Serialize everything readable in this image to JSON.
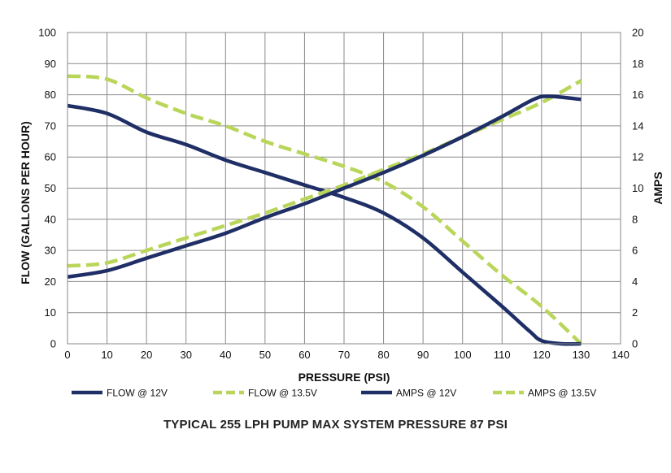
{
  "chart_data": {
    "type": "line",
    "caption": "TYPICAL 255 LPH PUMP MAX SYSTEM PRESSURE 87 PSI",
    "xlabel": "PRESSURE (PSI)",
    "ylabel": "FLOW (GALLONS PER HOUR)",
    "y2label": "AMPS",
    "xlim": [
      0,
      140
    ],
    "ylim": [
      0,
      100
    ],
    "y2lim": [
      0,
      20
    ],
    "xticks": [
      0,
      10,
      20,
      30,
      40,
      50,
      60,
      70,
      80,
      90,
      100,
      110,
      120,
      130,
      140
    ],
    "yticks": [
      0,
      10,
      20,
      30,
      40,
      50,
      60,
      70,
      80,
      90,
      100
    ],
    "y2ticks": [
      0,
      2,
      4,
      6,
      8,
      10,
      12,
      14,
      16,
      18,
      20
    ],
    "grid": true,
    "legend_position": "bottom",
    "series": [
      {
        "name": "FLOW @ 12V",
        "axis": "left",
        "style": "solid",
        "color": "#1f2f66",
        "x": [
          0,
          10,
          20,
          30,
          40,
          50,
          60,
          70,
          80,
          90,
          100,
          110,
          117,
          120,
          125,
          130
        ],
        "y": [
          76.5,
          74,
          68,
          64,
          59,
          55,
          51,
          47,
          42,
          34,
          23,
          12,
          4,
          1,
          0,
          0
        ]
      },
      {
        "name": "FLOW @ 13.5V",
        "axis": "left",
        "style": "dashed",
        "color": "#b9d65a",
        "x": [
          0,
          10,
          20,
          30,
          40,
          50,
          60,
          70,
          80,
          90,
          100,
          110,
          120,
          130
        ],
        "y": [
          86,
          85,
          79,
          74,
          70,
          65,
          61,
          57,
          52,
          44,
          33,
          22,
          12,
          0
        ]
      },
      {
        "name": "AMPS @ 12V",
        "axis": "right",
        "style": "solid",
        "color": "#1f2f66",
        "x": [
          0,
          10,
          20,
          30,
          40,
          50,
          60,
          70,
          80,
          90,
          100,
          110,
          118,
          122,
          130
        ],
        "y": [
          4.3,
          4.7,
          5.5,
          6.3,
          7.1,
          8.1,
          9.0,
          10.0,
          11.0,
          12.1,
          13.3,
          14.6,
          15.7,
          15.9,
          15.7
        ]
      },
      {
        "name": "AMPS @ 13.5V",
        "axis": "right",
        "style": "dashed",
        "color": "#b9d65a",
        "x": [
          0,
          10,
          20,
          30,
          40,
          50,
          60,
          70,
          80,
          90,
          100,
          110,
          120,
          130
        ],
        "y": [
          5.0,
          5.2,
          6.0,
          6.8,
          7.6,
          8.4,
          9.3,
          10.2,
          11.2,
          12.2,
          13.3,
          14.4,
          15.5,
          16.9
        ]
      }
    ]
  }
}
